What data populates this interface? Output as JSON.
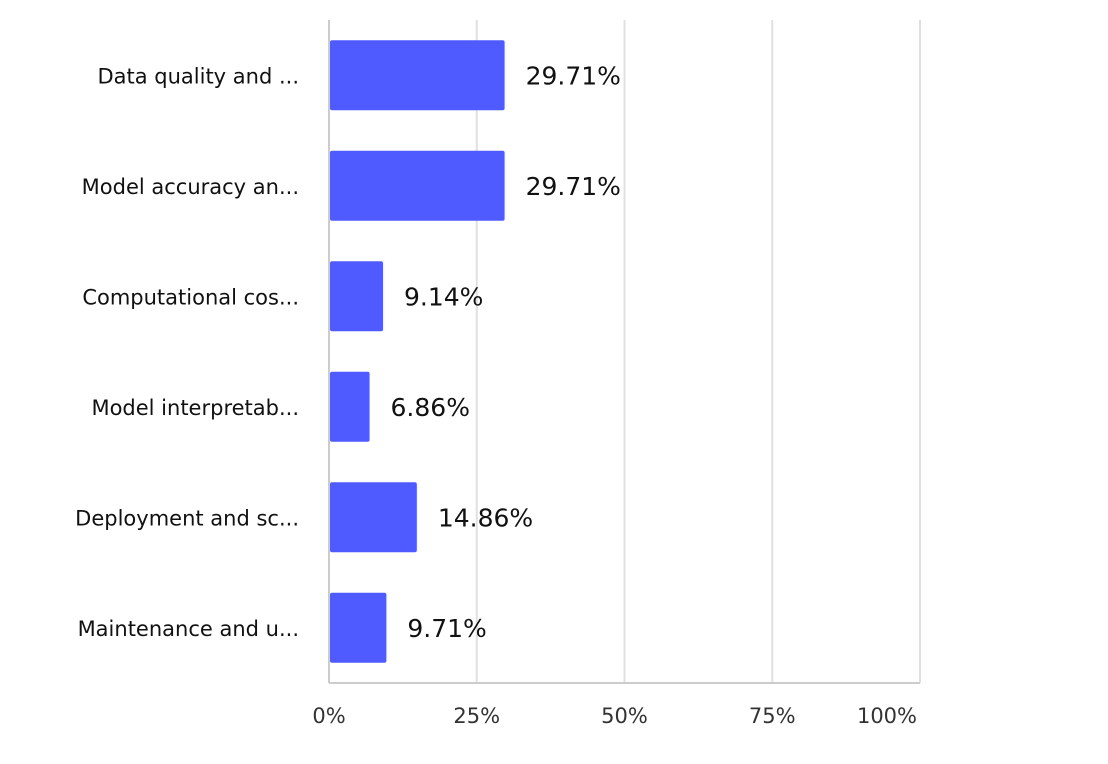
{
  "chart_data": {
    "type": "bar",
    "orientation": "horizontal",
    "categories": [
      "Data quality and ...",
      "Model accuracy an...",
      "Computational cos...",
      "Model interpretab...",
      "Deployment and sc...",
      "Maintenance and u..."
    ],
    "values": [
      29.71,
      29.71,
      9.14,
      6.86,
      14.86,
      9.71
    ],
    "data_labels": [
      "29.71%",
      "29.71%",
      "9.14%",
      "6.86%",
      "14.86%",
      "9.71%"
    ],
    "xlim": [
      0,
      100
    ],
    "x_ticks": [
      0,
      25,
      50,
      75,
      100
    ],
    "x_tick_labels": [
      "0%",
      "25%",
      "50%",
      "75%",
      "100%"
    ],
    "grid": "vertical",
    "colors": {
      "bar": "#4f5bff",
      "grid": "#e0e0e0",
      "axis": "#cccccc",
      "text": "#222222"
    }
  }
}
